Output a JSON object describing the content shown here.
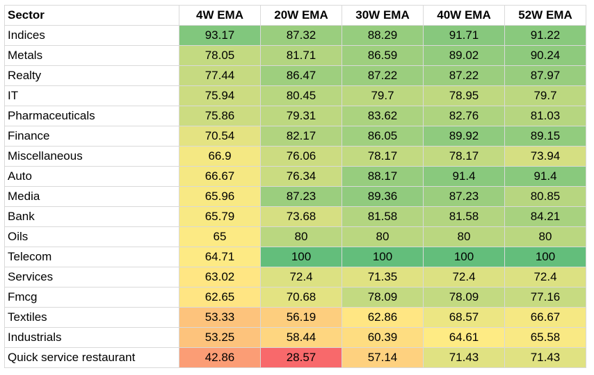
{
  "chart_data": {
    "type": "heatmap",
    "columns": [
      "Sector",
      "4W EMA",
      "20W EMA",
      "30W EMA",
      "40W EMA",
      "52W EMA"
    ],
    "rows": [
      {
        "sector": "Indices",
        "values": [
          93.17,
          87.32,
          88.29,
          91.71,
          91.22
        ]
      },
      {
        "sector": "Metals",
        "values": [
          78.05,
          81.71,
          86.59,
          89.02,
          90.24
        ]
      },
      {
        "sector": "Realty",
        "values": [
          77.44,
          86.47,
          87.22,
          87.22,
          87.97
        ]
      },
      {
        "sector": "IT",
        "values": [
          75.94,
          80.45,
          79.7,
          78.95,
          79.7
        ]
      },
      {
        "sector": "Pharmaceuticals",
        "values": [
          75.86,
          79.31,
          83.62,
          82.76,
          81.03
        ]
      },
      {
        "sector": "Finance",
        "values": [
          70.54,
          82.17,
          86.05,
          89.92,
          89.15
        ]
      },
      {
        "sector": "Miscellaneous",
        "values": [
          66.9,
          76.06,
          78.17,
          78.17,
          73.94
        ]
      },
      {
        "sector": "Auto",
        "values": [
          66.67,
          76.34,
          88.17,
          91.4,
          91.4
        ]
      },
      {
        "sector": "Media",
        "values": [
          65.96,
          87.23,
          89.36,
          87.23,
          80.85
        ]
      },
      {
        "sector": "Bank",
        "values": [
          65.79,
          73.68,
          81.58,
          81.58,
          84.21
        ]
      },
      {
        "sector": "Oils",
        "values": [
          65,
          80,
          80,
          80,
          80
        ]
      },
      {
        "sector": "Telecom",
        "values": [
          64.71,
          100,
          100,
          100,
          100
        ]
      },
      {
        "sector": "Services",
        "values": [
          63.02,
          72.4,
          71.35,
          72.4,
          72.4
        ]
      },
      {
        "sector": "Fmcg",
        "values": [
          62.65,
          70.68,
          78.09,
          78.09,
          77.16
        ]
      },
      {
        "sector": "Textiles",
        "values": [
          53.33,
          56.19,
          62.86,
          68.57,
          66.67
        ]
      },
      {
        "sector": "Industrials",
        "values": [
          53.25,
          58.44,
          60.39,
          64.61,
          65.58
        ]
      },
      {
        "sector": "Quick service restaurant",
        "values": [
          42.86,
          28.57,
          57.14,
          71.43,
          71.43
        ]
      }
    ],
    "color_scale": {
      "min_value": 28.57,
      "mid_value": 64.29,
      "max_value": 100,
      "min_color": "#f8696b",
      "mid_color": "#ffeb84",
      "max_color": "#63be7b"
    },
    "grid_color": "#d9d9d9"
  }
}
